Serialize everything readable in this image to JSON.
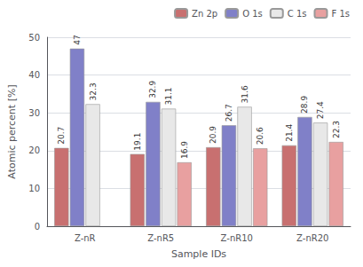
{
  "chart_data": {
    "type": "bar",
    "categories": [
      "Z-nR",
      "Z-nR5",
      "Z-nR10",
      "Z-nR20"
    ],
    "series": [
      {
        "name": "Zn 2p",
        "color": "#c87070",
        "values": [
          20.7,
          19.1,
          20.9,
          21.4
        ]
      },
      {
        "name": "O 1s",
        "color": "#8080c8",
        "values": [
          47.0,
          32.9,
          26.7,
          28.9
        ]
      },
      {
        "name": "C 1s",
        "color": "#e8e8e8",
        "values": [
          32.3,
          31.1,
          31.6,
          27.4
        ]
      },
      {
        "name": "F 1s",
        "color": "#e8a0a0",
        "values": [
          null,
          16.9,
          20.6,
          22.3
        ]
      }
    ],
    "xlabel": "Sample IDs",
    "ylabel": "Atomic percent [%]",
    "ylim": [
      0,
      50
    ],
    "yticks": [
      0,
      10,
      20,
      30,
      40,
      50
    ],
    "grid": true,
    "legend": "upper right",
    "data_labels": true
  }
}
